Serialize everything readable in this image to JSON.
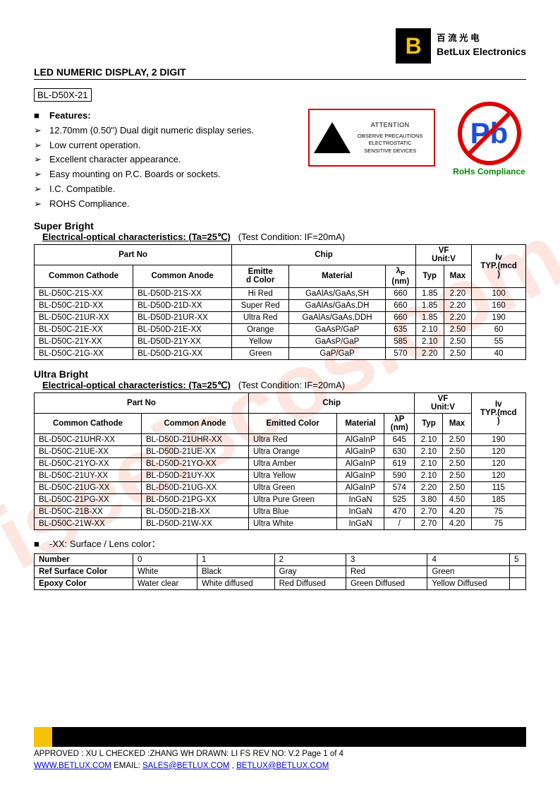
{
  "watermark": "iseeiscos.com",
  "logo": {
    "mark": "B",
    "cn": "百 流 光 电",
    "en": "BetLux Electronics"
  },
  "title": "LED NUMERIC DISPLAY, 2 DIGIT",
  "model": "BL-D50X-21",
  "featuresHeader": "Features:",
  "features": [
    "12.70mm (0.50\") Dual digit numeric display series.",
    "Low current operation.",
    "Excellent character appearance.",
    "Easy mounting on P.C. Boards or sockets.",
    "I.C. Compatible.",
    "ROHS Compliance."
  ],
  "esd": {
    "attn": "ATTENTION",
    "line1": "OBSERVE PRECAUTIONS",
    "line2": "ELECTROSTATIC",
    "line3": "SENSITIVE DEVICES"
  },
  "pb": {
    "symbol": "Pb",
    "label": "RoHs Compliance"
  },
  "super": {
    "title": "Super Bright",
    "sub_b": "Electrical-optical characteristics: (Ta=25℃)",
    "sub_r": "(Test Condition: IF=20mA)",
    "head": {
      "partno": "Part No",
      "chip": "Chip",
      "vf": "VF\nUnit:V",
      "iv": "Iv\nTYP.(mcd)",
      "cc": "Common Cathode",
      "ca": "Common Anode",
      "ec": "Emitted Color",
      "mat": "Material",
      "lp": "λP\n(nm)",
      "typ": "Typ",
      "max": "Max"
    },
    "rows": [
      [
        "BL-D50C-21S-XX",
        "BL-D50D-21S-XX",
        "Hi Red",
        "GaAlAs/GaAs,SH",
        "660",
        "1.85",
        "2.20",
        "100"
      ],
      [
        "BL-D50C-21D-XX",
        "BL-D50D-21D-XX",
        "Super Red",
        "GaAlAs/GaAs,DH",
        "660",
        "1.85",
        "2.20",
        "160"
      ],
      [
        "BL-D50C-21UR-XX",
        "BL-D50D-21UR-XX",
        "Ultra Red",
        "GaAlAs/GaAs,DDH",
        "660",
        "1.85",
        "2.20",
        "190"
      ],
      [
        "BL-D50C-21E-XX",
        "BL-D50D-21E-XX",
        "Orange",
        "GaAsP/GaP",
        "635",
        "2.10",
        "2.50",
        "60"
      ],
      [
        "BL-D50C-21Y-XX",
        "BL-D50D-21Y-XX",
        "Yellow",
        "GaAsP/GaP",
        "585",
        "2.10",
        "2.50",
        "55"
      ],
      [
        "BL-D50C-21G-XX",
        "BL-D50D-21G-XX",
        "Green",
        "GaP/GaP",
        "570",
        "2.20",
        "2.50",
        "40"
      ]
    ]
  },
  "ultra": {
    "title": "Ultra Bright",
    "sub_b": "Electrical-optical characteristics: (Ta=25℃)",
    "sub_r": "(Test Condition: IF=20mA)",
    "rows": [
      [
        "BL-D50C-21UHR-XX",
        "BL-D50D-21UHR-XX",
        "Ultra Red",
        "AlGaInP",
        "645",
        "2.10",
        "2.50",
        "190"
      ],
      [
        "BL-D50C-21UE-XX",
        "BL-D50D-21UE-XX",
        "Ultra Orange",
        "AlGaInP",
        "630",
        "2.10",
        "2.50",
        "120"
      ],
      [
        "BL-D50C-21YO-XX",
        "BL-D50D-21YO-XX",
        "Ultra Amber",
        "AlGaInP",
        "619",
        "2.10",
        "2.50",
        "120"
      ],
      [
        "BL-D50C-21UY-XX",
        "BL-D50D-21UY-XX",
        "Ultra Yellow",
        "AlGaInP",
        "590",
        "2.10",
        "2.50",
        "120"
      ],
      [
        "BL-D50C-21UG-XX",
        "BL-D50D-21UG-XX",
        "Ultra Green",
        "AlGaInP",
        "574",
        "2.20",
        "2.50",
        "115"
      ],
      [
        "BL-D50C-21PG-XX",
        "BL-D50D-21PG-XX",
        "Ultra Pure Green",
        "InGaN",
        "525",
        "3.80",
        "4.50",
        "185"
      ],
      [
        "BL-D50C-21B-XX",
        "BL-D50D-21B-XX",
        "Ultra Blue",
        "InGaN",
        "470",
        "2.70",
        "4.20",
        "75"
      ],
      [
        "BL-D50C-21W-XX",
        "BL-D50D-21W-XX",
        "Ultra White",
        "InGaN",
        "/",
        "2.70",
        "4.20",
        "75"
      ]
    ]
  },
  "lens": {
    "header": "-XX: Surface / Lens color：",
    "numLabel": "Number",
    "nums": [
      "0",
      "1",
      "2",
      "3",
      "4",
      "5"
    ],
    "refLabel": "Ref Surface Color",
    "ref": [
      "White",
      "Black",
      "Gray",
      "Red",
      "Green",
      ""
    ],
    "epoxyLabel": "Epoxy Color",
    "epoxy": [
      "Water clear",
      "White diffused",
      "Red Diffused",
      "Green Diffused",
      "Yellow Diffused",
      ""
    ]
  },
  "footer": {
    "line1": "APPROVED : XU L    CHECKED  :ZHANG WH    DRAWN:  LI  FS       REV  NO:  V.2      Page 1 of 4",
    "site": "WWW.BETLUX.COM",
    "emailLbl": "     EMAIL: ",
    "email1": "SALES@BETLUX.COM",
    "sep": " , ",
    "email2": "BETLUX@BETLUX.COM"
  }
}
